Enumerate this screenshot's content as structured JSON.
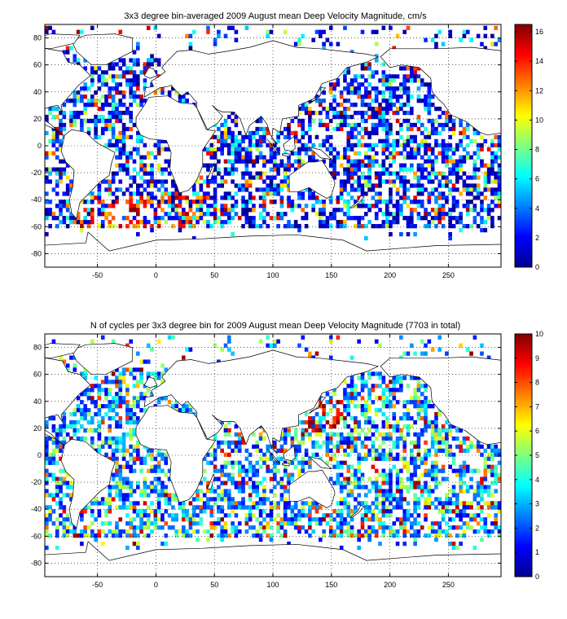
{
  "chart_data": [
    {
      "type": "heatmap",
      "title": "3x3 degree bin-averaged 2009 August mean Deep Velocity Magnitude, cm/s",
      "xlabel": "",
      "ylabel": "",
      "xlim": [
        -95,
        295
      ],
      "ylim": [
        -90,
        90
      ],
      "bin_size_deg": 3,
      "grid": true,
      "x_ticks": [
        "-50",
        "0",
        "50",
        "100",
        "150",
        "200",
        "250"
      ],
      "y_ticks": [
        "80",
        "60",
        "40",
        "20",
        "0",
        "-20",
        "-40",
        "-60",
        "-80"
      ],
      "colorbar": {
        "colormap": "jet",
        "range": [
          0,
          16.5
        ],
        "ticks": [
          "16",
          "14",
          "12",
          "10",
          "8",
          "6",
          "4",
          "2",
          "0"
        ]
      },
      "value_description": "Mostly 0-4 cm/s (blue) over open ocean; high values 10-16 cm/s concentrated in the Southern Ocean band near 40-60S (Drake Passage / South Atlantic) and western boundary currents."
    },
    {
      "type": "heatmap",
      "title": "N of cycles per 3x3 degree bin for 2009 August mean Deep Velocity Magnitude (7703 in total)",
      "xlabel": "",
      "ylabel": "",
      "xlim": [
        -95,
        295
      ],
      "ylim": [
        -90,
        90
      ],
      "bin_size_deg": 3,
      "grid": true,
      "total_cycles": 7703,
      "x_ticks": [
        "-50",
        "0",
        "50",
        "100",
        "150",
        "200",
        "250"
      ],
      "y_ticks": [
        "80",
        "60",
        "40",
        "20",
        "0",
        "-20",
        "-40",
        "-60",
        "-80"
      ],
      "colorbar": {
        "colormap": "jet",
        "range": [
          0,
          10
        ],
        "ticks": [
          "10",
          "9",
          "8",
          "7",
          "6",
          "5",
          "4",
          "3",
          "2",
          "1",
          "0"
        ]
      },
      "value_description": "Typically 1-4 cycles per bin (blue/cyan); higher counts 6-10 scattered, densest in the western North Pacific near 20-40N, 140-150E."
    }
  ],
  "colors": {
    "axis": "#000000",
    "grid": "#000000",
    "coastline": "#000000",
    "background": "#ffffff"
  }
}
